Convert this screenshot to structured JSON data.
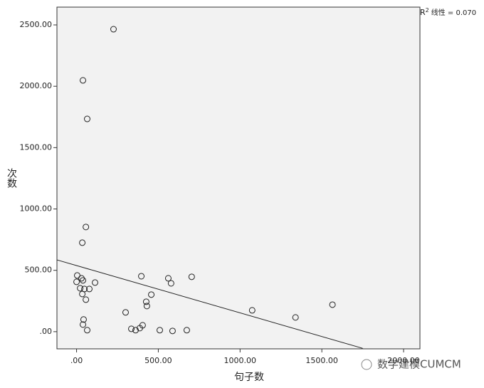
{
  "chart_data": {
    "type": "scatter",
    "x_label": "句子数",
    "y_label": "次数",
    "r2_letter": "R",
    "r2_sup": "2",
    "r2_text": "线性 = 0.070",
    "watermark": "数学建模CUMCM",
    "xlim": [
      -120,
      2100
    ],
    "ylim": [
      -140,
      2645
    ],
    "xticks": [
      {
        "value": 0,
        "label": ".00"
      },
      {
        "value": 500,
        "label": "500.00"
      },
      {
        "value": 1000,
        "label": "1000.00"
      },
      {
        "value": 1500,
        "label": "1500.00"
      },
      {
        "value": 2000,
        "label": "2000.00"
      }
    ],
    "yticks": [
      {
        "value": 0,
        "label": ".00"
      },
      {
        "value": 500,
        "label": "500.00"
      },
      {
        "value": 1000,
        "label": "1000.00"
      },
      {
        "value": 1500,
        "label": "1500.00"
      },
      {
        "value": 2000,
        "label": "2000.00"
      },
      {
        "value": 2500,
        "label": "2500.00"
      }
    ],
    "grid": false,
    "marker_color": "#222222",
    "background": "#f2f2f2",
    "series": [
      {
        "x": [
          226,
          39,
          65,
          57,
          35,
          4,
          30,
          39,
          0,
          113,
          22,
          48,
          78,
          35,
          57,
          43,
          39,
          65,
          300,
          335,
          361,
          387,
          404,
          396,
          426,
          430,
          457,
          509,
          561,
          578,
          587,
          674,
          704,
          1074,
          1339,
          1565
        ],
        "y": [
          2465,
          2048,
          1734,
          853,
          725,
          458,
          435,
          418,
          406,
          400,
          354,
          348,
          348,
          307,
          261,
          99,
          58,
          12,
          157,
          23,
          12,
          29,
          52,
          452,
          244,
          209,
          302,
          12,
          435,
          394,
          6,
          12,
          447,
          174,
          116,
          220
        ]
      }
    ],
    "fit_line": {
      "color": "#222222",
      "x": [
        -120,
        1750
      ],
      "y": [
        585,
        -136
      ]
    }
  }
}
